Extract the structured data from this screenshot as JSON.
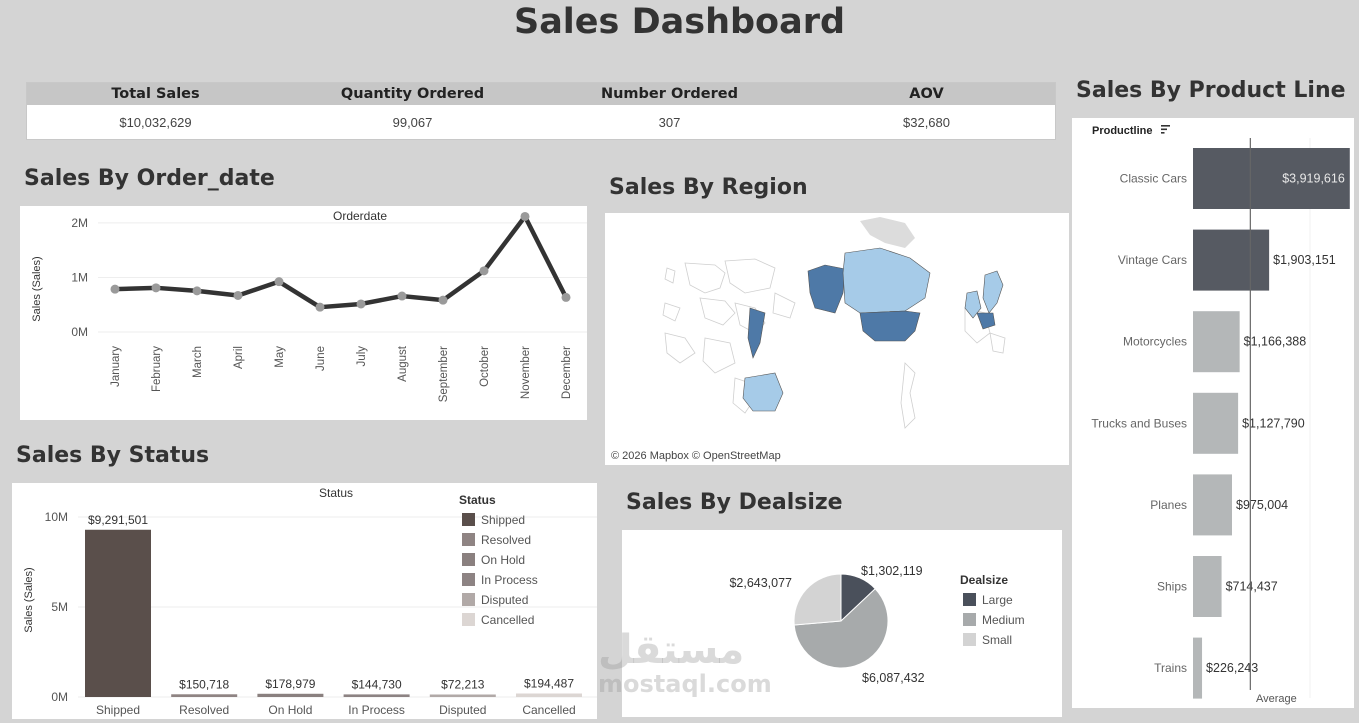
{
  "title": "Sales Dashboard",
  "kpi": {
    "headers": [
      "Total Sales",
      "Quantity Ordered",
      "Number Ordered",
      "AOV"
    ],
    "values": [
      "$10,032,629",
      "99,067",
      "307",
      "$32,680"
    ]
  },
  "sections": {
    "order_date": "Sales By Order_date",
    "region": "Sales By Region",
    "status": "Sales By Status",
    "dealsize": "Sales By Dealsize",
    "product_line": "Sales By Product Line"
  },
  "map": {
    "attribution": "© 2026 Mapbox © OpenStreetMap"
  },
  "watermark": {
    "arabic": "مستقل",
    "latin": "mostaql.com"
  },
  "colors": {
    "line": "#333333",
    "point": "#9a9a9a",
    "dark_bar": "#565a62",
    "light_bar": "#b4b7b8",
    "shipped": "#5a4f4b",
    "map_dark": "#4e79a7",
    "map_light": "#a6cbe8"
  },
  "chart_data": [
    {
      "type": "line",
      "title": "Orderdate",
      "ylabel": "Sales (Sales)",
      "x": [
        "January",
        "February",
        "March",
        "April",
        "May",
        "June",
        "July",
        "August",
        "September",
        "October",
        "November",
        "December"
      ],
      "values": [
        785000,
        810000,
        754000,
        670000,
        923000,
        455000,
        514000,
        659000,
        584000,
        1121000,
        2118000,
        634000
      ],
      "yticks": [
        "0M",
        "1M",
        "2M"
      ],
      "ylim": [
        0,
        2200000
      ]
    },
    {
      "type": "bar",
      "title": "Status",
      "ylabel": "Sales (Sales)",
      "categories": [
        "Shipped",
        "Resolved",
        "On Hold",
        "In Process",
        "Disputed",
        "Cancelled"
      ],
      "values": [
        9291501,
        150718,
        178979,
        144730,
        72213,
        194487
      ],
      "data_labels": [
        "$9,291,501",
        "$150,718",
        "$178,979",
        "$144,730",
        "$72,213",
        "$194,487"
      ],
      "colors": [
        "#5a4f4b",
        "#8f8483",
        "#8a807f",
        "#8d8383",
        "#b1a9a7",
        "#dcd6d3"
      ],
      "yticks": [
        "0M",
        "5M",
        "10M"
      ],
      "ylim": [
        0,
        10000000
      ],
      "legend": {
        "title": "Status",
        "position": "top-right"
      }
    },
    {
      "type": "pie",
      "categories": [
        "Large",
        "Medium",
        "Small"
      ],
      "values": [
        1302119,
        6087432,
        2643077
      ],
      "data_labels": [
        "$1,302,119",
        "$6,087,432",
        "$2,643,077"
      ],
      "colors": [
        "#4a505b",
        "#a7aaab",
        "#d3d3d3"
      ],
      "legend": {
        "title": "Dealsize",
        "position": "right"
      }
    },
    {
      "type": "bar",
      "orientation": "horizontal",
      "header": "Productline",
      "categories": [
        "Classic Cars",
        "Vintage Cars",
        "Motorcycles",
        "Trucks and Buses",
        "Planes",
        "Ships",
        "Trains"
      ],
      "values": [
        3919616,
        1903151,
        1166388,
        1127790,
        975004,
        714437,
        226243
      ],
      "data_labels": [
        "$3,919,616",
        "$1,903,151",
        "$1,166,388",
        "$1,127,790",
        "$975,004",
        "$714,437",
        "$226,243"
      ],
      "reference_line": {
        "label": "Average",
        "value": 1433233
      },
      "xlim": [
        0,
        4000000
      ]
    }
  ]
}
